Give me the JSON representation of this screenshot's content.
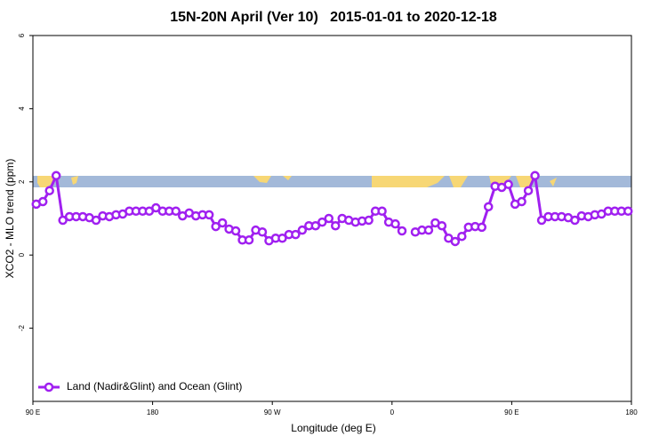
{
  "chart_data": {
    "type": "line",
    "title": "15N-20N April (Ver 10)   2015-01-01 to 2020-12-18",
    "x_label": "Longitude (deg E)",
    "y_label": "XCO2 - MLO trend (ppm)",
    "xlim": [
      90,
      540
    ],
    "ylim": [
      -4,
      6
    ],
    "xticks": [
      {
        "value": 90,
        "label": "90 E"
      },
      180,
      {
        "value": 270,
        "label": "90 W"
      },
      {
        "value": 360,
        "label": "0"
      },
      {
        "value": 450,
        "label": "90 E"
      },
      {
        "value": 540,
        "label": "180"
      }
    ],
    "yticks": [
      -2,
      0,
      2,
      4,
      6
    ],
    "legend": "bottom-left",
    "x": [
      92.5,
      97.5,
      102.5,
      107.5,
      112.5,
      117.5,
      122.5,
      127.5,
      132.5,
      137.5,
      142.5,
      147.5,
      152.5,
      157.5,
      162.5,
      167.5,
      172.5,
      177.5,
      182.5,
      187.5,
      192.5,
      197.5,
      202.5,
      207.5,
      212.5,
      217.5,
      222.5,
      227.5,
      232.5,
      237.5,
      242.5,
      247.5,
      252.5,
      257.5,
      262.5,
      267.5,
      272.5,
      277.5,
      282.5,
      287.5,
      292.5,
      297.5,
      302.5,
      307.5,
      312.5,
      317.5,
      322.5,
      327.5,
      332.5,
      337.5,
      342.5,
      347.5,
      352.5,
      357.5,
      362.5,
      367.5,
      372.5,
      377.5,
      382.5,
      387.5,
      392.5,
      397.5,
      402.5,
      407.5,
      412.5,
      417.5,
      422.5,
      427.5,
      432.5,
      437.5,
      442.5,
      447.5,
      452.5,
      457.5,
      462.5,
      467.5,
      472.5,
      477.5,
      482.5,
      487.5,
      492.5,
      497.5,
      502.5,
      507.5,
      512.5,
      517.5,
      522.5,
      527.5,
      532.5,
      537.5
    ],
    "series": [
      {
        "name": "Land (Nadir&Glint) and Ocean (Glint)",
        "color": "#a020f0",
        "values": [
          1.39,
          1.46,
          1.76,
          2.17,
          0.95,
          1.05,
          1.05,
          1.05,
          1.02,
          0.95,
          1.07,
          1.05,
          1.1,
          1.12,
          1.2,
          1.2,
          1.2,
          1.2,
          1.29,
          1.2,
          1.2,
          1.2,
          1.07,
          1.15,
          1.07,
          1.1,
          1.1,
          0.78,
          0.88,
          0.71,
          0.66,
          0.41,
          0.41,
          0.68,
          0.63,
          0.39,
          0.46,
          0.46,
          0.56,
          0.56,
          0.68,
          0.8,
          0.8,
          0.9,
          1.0,
          0.8,
          1.0,
          0.95,
          0.9,
          0.93,
          0.95,
          1.2,
          1.2,
          0.9,
          0.85,
          0.66,
          null,
          0.63,
          0.68,
          0.68,
          0.88,
          0.8,
          0.46,
          0.37,
          0.51,
          0.76,
          0.78,
          0.76,
          1.32,
          1.88,
          1.85,
          1.93,
          1.39,
          1.46,
          1.76,
          2.17,
          0.95,
          1.05,
          1.05,
          1.05,
          1.02,
          0.95,
          1.07,
          1.05,
          1.1,
          1.12,
          1.2,
          1.2,
          1.2,
          1.2
        ]
      }
    ]
  }
}
